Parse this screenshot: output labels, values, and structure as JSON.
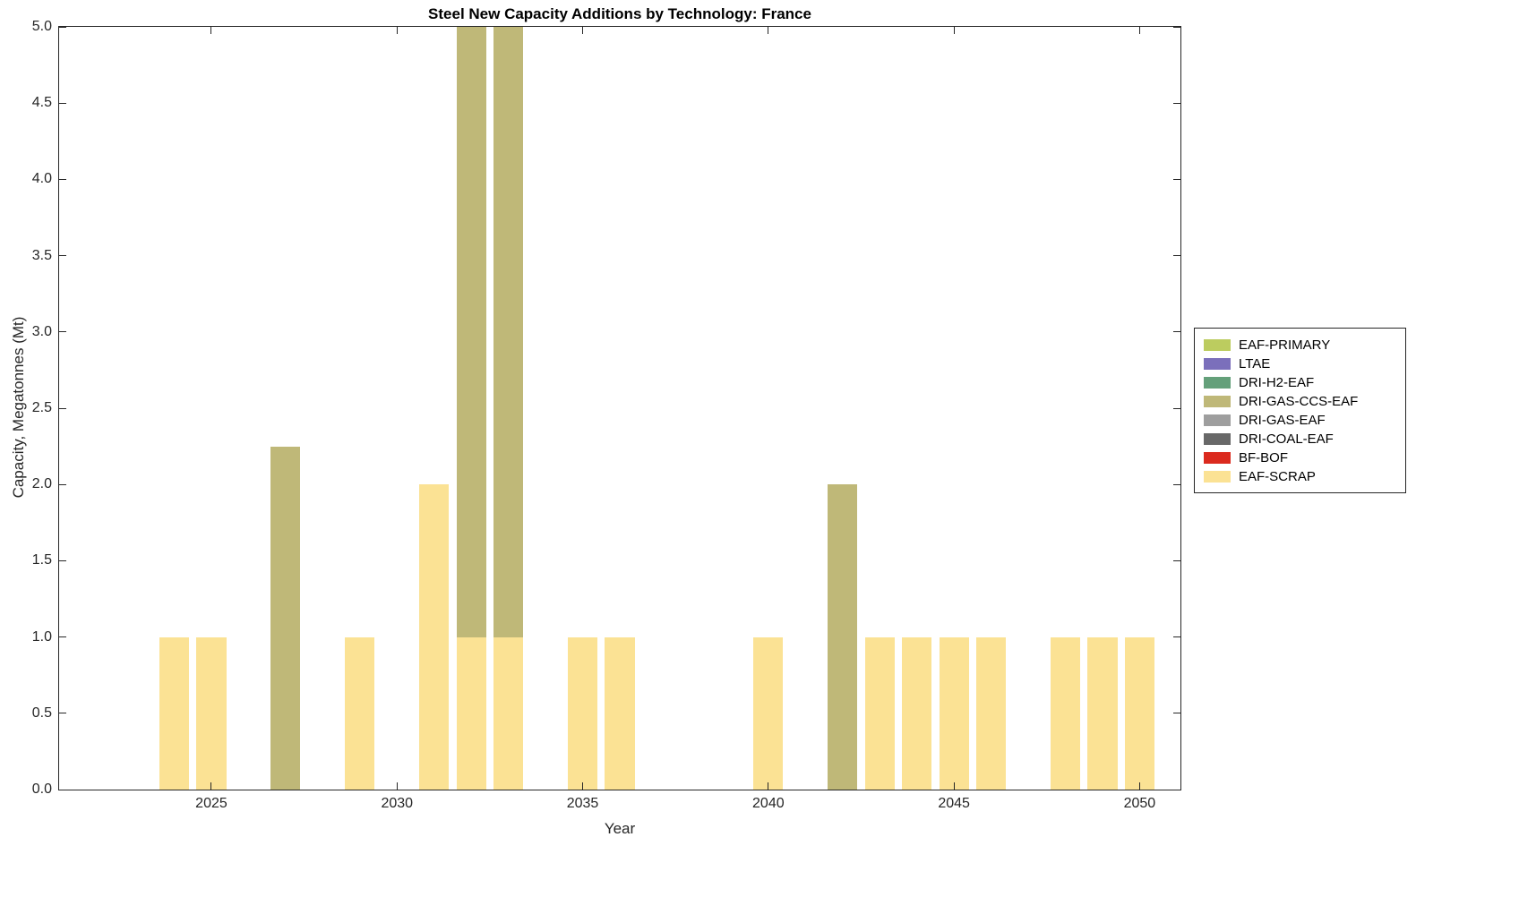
{
  "chart_data": {
    "type": "bar",
    "stacked": true,
    "title": "Steel New Capacity Additions by Technology: France",
    "xlabel": "Year",
    "ylabel": "Capacity, Megatonnes (Mt)",
    "xlim": [
      2020.9,
      2051.1
    ],
    "ylim": [
      0,
      5
    ],
    "bar_width_years": 0.8,
    "grid": false,
    "legend_position": "east-outside",
    "x_ticks": [
      {
        "value": 2025,
        "label": "2025"
      },
      {
        "value": 2030,
        "label": "2030"
      },
      {
        "value": 2035,
        "label": "2035"
      },
      {
        "value": 2040,
        "label": "2040"
      },
      {
        "value": 2045,
        "label": "2045"
      },
      {
        "value": 2050,
        "label": "2050"
      }
    ],
    "y_ticks": [
      {
        "value": 0,
        "label": "0.0"
      },
      {
        "value": 0.5,
        "label": "0.5"
      },
      {
        "value": 1,
        "label": "1.0"
      },
      {
        "value": 1.5,
        "label": "1.5"
      },
      {
        "value": 2,
        "label": "2.0"
      },
      {
        "value": 2.5,
        "label": "2.5"
      },
      {
        "value": 3,
        "label": "3.0"
      },
      {
        "value": 3.5,
        "label": "3.5"
      },
      {
        "value": 4,
        "label": "4.0"
      },
      {
        "value": 4.5,
        "label": "4.5"
      },
      {
        "value": 5,
        "label": "5.0"
      }
    ],
    "legend": [
      {
        "name": "EAF-PRIMARY",
        "color": "#BCCC5F"
      },
      {
        "name": "LTAE",
        "color": "#7B6FBB"
      },
      {
        "name": "DRI-H2-EAF",
        "color": "#64A07A"
      },
      {
        "name": "DRI-GAS-CCS-EAF",
        "color": "#BFB878"
      },
      {
        "name": "DRI-GAS-EAF",
        "color": "#9E9E9E"
      },
      {
        "name": "DRI-COAL-EAF",
        "color": "#686868"
      },
      {
        "name": "BF-BOF",
        "color": "#DB2A1E"
      },
      {
        "name": "EAF-SCRAP",
        "color": "#FBE294"
      }
    ],
    "bars": [
      {
        "year": 2024,
        "segments": [
          {
            "tech": "EAF-SCRAP",
            "value": 1.0
          }
        ]
      },
      {
        "year": 2025,
        "segments": [
          {
            "tech": "EAF-SCRAP",
            "value": 1.0
          }
        ]
      },
      {
        "year": 2027,
        "segments": [
          {
            "tech": "DRI-GAS-CCS-EAF",
            "value": 2.25
          }
        ]
      },
      {
        "year": 2029,
        "segments": [
          {
            "tech": "EAF-SCRAP",
            "value": 1.0
          }
        ]
      },
      {
        "year": 2031,
        "segments": [
          {
            "tech": "EAF-SCRAP",
            "value": 2.0
          }
        ]
      },
      {
        "year": 2032,
        "segments": [
          {
            "tech": "EAF-SCRAP",
            "value": 1.0
          },
          {
            "tech": "DRI-GAS-CCS-EAF",
            "value": 4.0,
            "clipped_at_axis_top": true
          }
        ]
      },
      {
        "year": 2033,
        "segments": [
          {
            "tech": "EAF-SCRAP",
            "value": 1.0
          },
          {
            "tech": "DRI-GAS-CCS-EAF",
            "value": 4.0,
            "clipped_at_axis_top": true
          }
        ]
      },
      {
        "year": 2035,
        "segments": [
          {
            "tech": "EAF-SCRAP",
            "value": 1.0
          }
        ]
      },
      {
        "year": 2036,
        "segments": [
          {
            "tech": "EAF-SCRAP",
            "value": 1.0
          }
        ]
      },
      {
        "year": 2040,
        "segments": [
          {
            "tech": "EAF-SCRAP",
            "value": 1.0
          }
        ]
      },
      {
        "year": 2042,
        "segments": [
          {
            "tech": "DRI-GAS-CCS-EAF",
            "value": 2.0
          }
        ]
      },
      {
        "year": 2043,
        "segments": [
          {
            "tech": "EAF-SCRAP",
            "value": 1.0
          }
        ]
      },
      {
        "year": 2044,
        "segments": [
          {
            "tech": "EAF-SCRAP",
            "value": 1.0
          }
        ]
      },
      {
        "year": 2045,
        "segments": [
          {
            "tech": "EAF-SCRAP",
            "value": 1.0
          }
        ]
      },
      {
        "year": 2046,
        "segments": [
          {
            "tech": "EAF-SCRAP",
            "value": 1.0
          }
        ]
      },
      {
        "year": 2048,
        "segments": [
          {
            "tech": "EAF-SCRAP",
            "value": 1.0
          }
        ]
      },
      {
        "year": 2049,
        "segments": [
          {
            "tech": "EAF-SCRAP",
            "value": 1.0
          }
        ]
      },
      {
        "year": 2050,
        "segments": [
          {
            "tech": "EAF-SCRAP",
            "value": 1.0
          }
        ]
      }
    ]
  }
}
